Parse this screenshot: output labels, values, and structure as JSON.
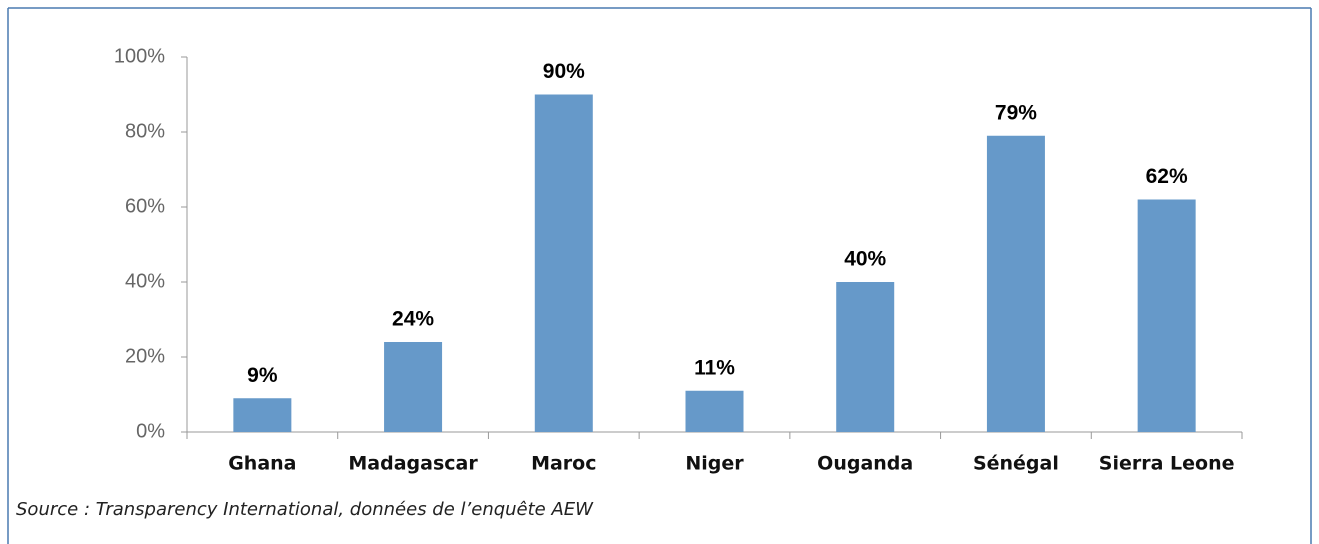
{
  "chart_data": {
    "type": "bar",
    "categories": [
      "Ghana",
      "Madagascar",
      "Maroc",
      "Niger",
      "Ouganda",
      "Sénégal",
      "Sierra Leone"
    ],
    "values": [
      9,
      24,
      90,
      11,
      40,
      79,
      62
    ],
    "value_labels": [
      "9%",
      "24%",
      "90%",
      "11%",
      "40%",
      "79%",
      "62%"
    ],
    "color": "#6699c9",
    "ylim": [
      0,
      100
    ],
    "yticks": [
      {
        "value": 0,
        "label": "0%"
      },
      {
        "value": 20,
        "label": "20%"
      },
      {
        "value": 40,
        "label": "40%"
      },
      {
        "value": 60,
        "label": "60%"
      },
      {
        "value": 80,
        "label": "80%"
      },
      {
        "value": 100,
        "label": "100%"
      }
    ],
    "grid": false,
    "source": "Source : Transparency International, données de l’enquête AEW"
  }
}
